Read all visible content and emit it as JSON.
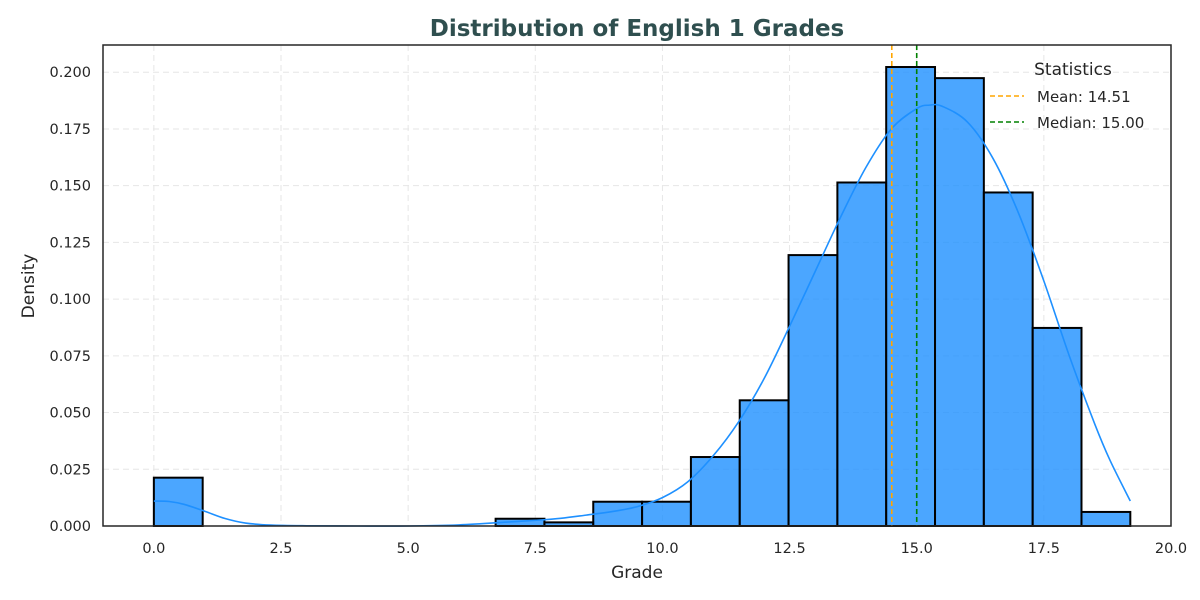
{
  "chart_data": {
    "type": "bar",
    "title": "Distribution of English 1 Grades",
    "xlabel": "Grade",
    "ylabel": "Density",
    "xlim": [
      -1.0,
      20.0
    ],
    "ylim": [
      0,
      0.212
    ],
    "x_ticks": [
      "0.0",
      "2.5",
      "5.0",
      "7.5",
      "10.0",
      "12.5",
      "15.0",
      "17.5",
      "20.0"
    ],
    "x_tick_values": [
      0,
      2.5,
      5,
      7.5,
      10,
      12.5,
      15,
      17.5,
      20
    ],
    "y_ticks": [
      "0.000",
      "0.025",
      "0.050",
      "0.075",
      "0.100",
      "0.125",
      "0.150",
      "0.175",
      "0.200"
    ],
    "y_tick_values": [
      0,
      0.025,
      0.05,
      0.075,
      0.1,
      0.125,
      0.15,
      0.175,
      0.2
    ],
    "grid": true,
    "bins": [
      {
        "x0": 0.0,
        "x1": 0.96,
        "density": 0.0213
      },
      {
        "x0": 0.96,
        "x1": 1.92,
        "density": 0.0
      },
      {
        "x0": 1.92,
        "x1": 2.88,
        "density": 0.0
      },
      {
        "x0": 2.88,
        "x1": 3.84,
        "density": 0.0
      },
      {
        "x0": 3.84,
        "x1": 4.8,
        "density": 0.0
      },
      {
        "x0": 4.8,
        "x1": 5.76,
        "density": 0.0
      },
      {
        "x0": 5.76,
        "x1": 6.72,
        "density": 0.0
      },
      {
        "x0": 6.72,
        "x1": 7.68,
        "density": 0.0032
      },
      {
        "x0": 7.68,
        "x1": 8.64,
        "density": 0.0016
      },
      {
        "x0": 8.64,
        "x1": 9.6,
        "density": 0.0107
      },
      {
        "x0": 9.6,
        "x1": 10.56,
        "density": 0.0107
      },
      {
        "x0": 10.56,
        "x1": 11.52,
        "density": 0.0304
      },
      {
        "x0": 11.52,
        "x1": 12.48,
        "density": 0.0554
      },
      {
        "x0": 12.48,
        "x1": 13.44,
        "density": 0.1194
      },
      {
        "x0": 13.44,
        "x1": 14.4,
        "density": 0.1514
      },
      {
        "x0": 14.4,
        "x1": 15.36,
        "density": 0.2023
      },
      {
        "x0": 15.36,
        "x1": 16.32,
        "density": 0.1974
      },
      {
        "x0": 16.32,
        "x1": 17.28,
        "density": 0.147
      },
      {
        "x0": 17.28,
        "x1": 18.24,
        "density": 0.0873
      },
      {
        "x0": 18.24,
        "x1": 19.2,
        "density": 0.0062
      }
    ],
    "kde": {
      "color": "#1e90ff",
      "points": [
        [
          0.0,
          0.011
        ],
        [
          0.3,
          0.0108
        ],
        [
          0.6,
          0.0095
        ],
        [
          1.0,
          0.0065
        ],
        [
          1.4,
          0.0033
        ],
        [
          1.8,
          0.0013
        ],
        [
          2.3,
          0.0004
        ],
        [
          3.0,
          0.0001
        ],
        [
          4.0,
          0.0
        ],
        [
          5.0,
          0.0
        ],
        [
          6.0,
          0.0005
        ],
        [
          7.0,
          0.0018
        ],
        [
          7.5,
          0.0025
        ],
        [
          8.0,
          0.0034
        ],
        [
          8.5,
          0.0048
        ],
        [
          9.0,
          0.0063
        ],
        [
          9.5,
          0.0085
        ],
        [
          10.0,
          0.0125
        ],
        [
          10.5,
          0.0195
        ],
        [
          11.0,
          0.031
        ],
        [
          11.5,
          0.046
        ],
        [
          12.0,
          0.065
        ],
        [
          12.5,
          0.088
        ],
        [
          13.0,
          0.112
        ],
        [
          13.5,
          0.136
        ],
        [
          14.0,
          0.158
        ],
        [
          14.5,
          0.175
        ],
        [
          15.0,
          0.184
        ],
        [
          15.25,
          0.1855
        ],
        [
          15.5,
          0.185
        ],
        [
          16.0,
          0.178
        ],
        [
          16.5,
          0.162
        ],
        [
          17.0,
          0.138
        ],
        [
          17.5,
          0.108
        ],
        [
          18.0,
          0.075
        ],
        [
          18.5,
          0.045
        ],
        [
          18.8,
          0.029
        ],
        [
          19.2,
          0.011
        ]
      ]
    },
    "reference_lines": [
      {
        "name": "Mean",
        "value": 14.51,
        "color": "#ffa500"
      },
      {
        "name": "Median",
        "value": 15.0,
        "color": "#008000"
      }
    ],
    "bar_color": "#1e90ff",
    "legend_placement": "top-right"
  },
  "legend": {
    "title": "Statistics",
    "mean_label": "Mean: 14.51",
    "median_label": "Median: 15.00"
  }
}
